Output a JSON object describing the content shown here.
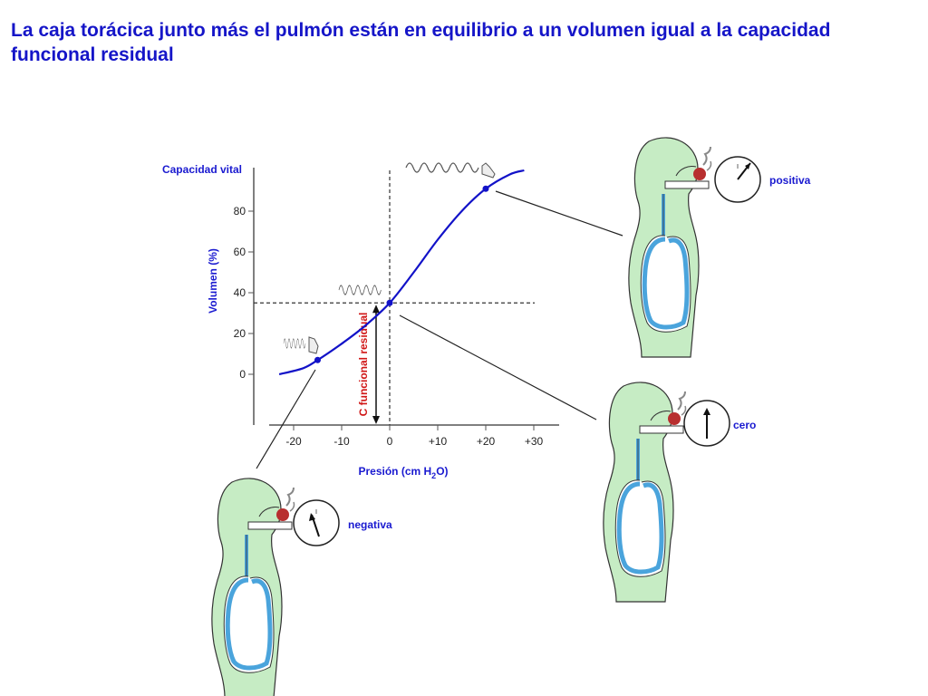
{
  "title": "La caja torácica junto más el pulmón están en equilibrio a un volumen igual a la capacidad funcional residual",
  "chart_data": {
    "type": "line",
    "ylabel": "Volumen (%)",
    "y_top_label": "Capacidad vital",
    "y_ticks": [
      "0",
      "20",
      "40",
      "60",
      "80"
    ],
    "xlabel_main": "Presión (cm H",
    "xlabel_sub": "2",
    "xlabel_end": "O)",
    "x_ticks": [
      "-20",
      "-10",
      "0",
      "+10",
      "+20",
      "+30"
    ],
    "xlim": [
      -25,
      35
    ],
    "ylim": [
      -10,
      105
    ],
    "curve": [
      {
        "x": -23,
        "y": 0
      },
      {
        "x": -18,
        "y": 3
      },
      {
        "x": -15,
        "y": 7
      },
      {
        "x": -10,
        "y": 15
      },
      {
        "x": -5,
        "y": 24
      },
      {
        "x": 0,
        "y": 35
      },
      {
        "x": 5,
        "y": 50
      },
      {
        "x": 10,
        "y": 66
      },
      {
        "x": 15,
        "y": 80
      },
      {
        "x": 20,
        "y": 91
      },
      {
        "x": 25,
        "y": 98
      },
      {
        "x": 28,
        "y": 100
      }
    ],
    "points": [
      {
        "x": -15,
        "y": 7
      },
      {
        "x": 0,
        "y": 35
      },
      {
        "x": 20,
        "y": 91
      }
    ],
    "frc_label": "C funcional residual",
    "colors": {
      "curve": "#1212c8",
      "frc": "#d01616",
      "axis_label": "#1a1ad0"
    }
  },
  "panels": {
    "positive": {
      "label": "positiva"
    },
    "zero": {
      "label": "cero"
    },
    "negative": {
      "label": "negativa"
    }
  },
  "colors": {
    "body": "#c6ecc4",
    "lung": "#4aa4dc",
    "nose": "#b82f2f",
    "title": "#1515c8"
  }
}
